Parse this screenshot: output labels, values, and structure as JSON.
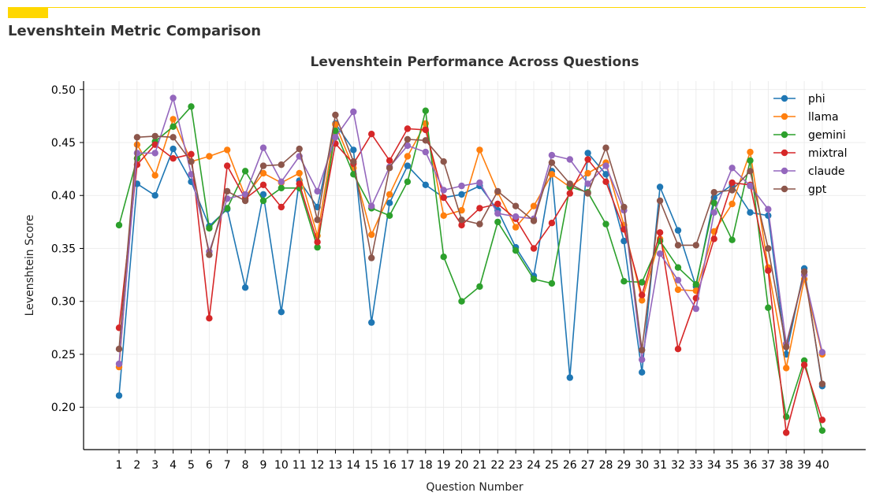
{
  "header": {
    "title": "Levenshtein Metric Comparison",
    "accent_color": "#FFD700"
  },
  "chart_data": {
    "type": "line",
    "title": "Levenshtein Performance Across Questions",
    "xlabel": "Question Number",
    "ylabel": "Levenshtein Score",
    "ylim": [
      0.16,
      0.508
    ],
    "yticks": [
      0.2,
      0.25,
      0.3,
      0.35,
      0.4,
      0.45,
      0.5
    ],
    "grid": true,
    "legend_position": "top-right",
    "x": [
      1,
      2,
      3,
      4,
      5,
      6,
      7,
      8,
      9,
      10,
      11,
      12,
      13,
      14,
      15,
      16,
      17,
      18,
      19,
      20,
      21,
      22,
      23,
      24,
      25,
      26,
      27,
      28,
      29,
      30,
      31,
      32,
      33,
      34,
      35,
      36,
      37,
      38,
      39,
      40
    ],
    "series": [
      {
        "name": "phi",
        "color": "#1f77b4",
        "values": [
          0.211,
          0.411,
          0.4,
          0.444,
          0.413,
          0.371,
          0.387,
          0.313,
          0.401,
          0.29,
          0.414,
          0.389,
          0.468,
          0.443,
          0.28,
          0.393,
          0.428,
          0.41,
          0.398,
          0.401,
          0.409,
          0.386,
          0.351,
          0.324,
          0.423,
          0.228,
          0.44,
          0.42,
          0.357,
          0.233,
          0.408,
          0.367,
          0.314,
          0.398,
          0.41,
          0.384,
          0.381,
          0.25,
          0.331,
          0.22
        ]
      },
      {
        "name": "llama",
        "color": "#ff7f0e",
        "values": [
          0.238,
          0.448,
          0.419,
          0.472,
          0.432,
          0.437,
          0.443,
          0.399,
          0.421,
          0.412,
          0.421,
          0.362,
          0.467,
          0.426,
          0.363,
          0.401,
          0.437,
          0.468,
          0.381,
          0.386,
          0.443,
          0.403,
          0.37,
          0.39,
          0.42,
          0.408,
          0.421,
          0.431,
          0.372,
          0.301,
          0.359,
          0.311,
          0.31,
          0.366,
          0.392,
          0.441,
          0.332,
          0.237,
          0.321,
          0.25
        ]
      },
      {
        "name": "gemini",
        "color": "#2ca02c",
        "values": [
          0.372,
          0.435,
          0.451,
          0.465,
          0.484,
          0.369,
          0.388,
          0.423,
          0.395,
          0.407,
          0.407,
          0.351,
          0.461,
          0.42,
          0.388,
          0.381,
          0.413,
          0.48,
          0.342,
          0.3,
          0.314,
          0.375,
          0.348,
          0.321,
          0.317,
          0.408,
          0.403,
          0.373,
          0.319,
          0.318,
          0.357,
          0.332,
          0.316,
          0.393,
          0.358,
          0.433,
          0.294,
          0.191,
          0.244,
          0.178
        ]
      },
      {
        "name": "mixtral",
        "color": "#d62728",
        "values": [
          0.275,
          0.429,
          0.448,
          0.435,
          0.439,
          0.284,
          0.428,
          0.397,
          0.41,
          0.389,
          0.411,
          0.356,
          0.449,
          0.43,
          0.458,
          0.433,
          0.463,
          0.462,
          0.398,
          0.372,
          0.388,
          0.392,
          0.378,
          0.35,
          0.374,
          0.402,
          0.434,
          0.413,
          0.368,
          0.306,
          0.365,
          0.255,
          0.303,
          0.359,
          0.412,
          0.41,
          0.329,
          0.176,
          0.24,
          0.188
        ]
      },
      {
        "name": "claude",
        "color": "#9467bd",
        "values": [
          0.241,
          0.44,
          0.44,
          0.492,
          0.42,
          0.347,
          0.397,
          0.401,
          0.445,
          0.413,
          0.437,
          0.404,
          0.455,
          0.479,
          0.39,
          0.427,
          0.447,
          0.441,
          0.405,
          0.409,
          0.412,
          0.383,
          0.38,
          0.378,
          0.438,
          0.434,
          0.411,
          0.428,
          0.386,
          0.245,
          0.345,
          0.32,
          0.293,
          0.384,
          0.426,
          0.409,
          0.387,
          0.26,
          0.325,
          0.252
        ]
      },
      {
        "name": "gpt",
        "color": "#8c564b",
        "values": [
          0.255,
          0.455,
          0.456,
          0.455,
          0.432,
          0.344,
          0.404,
          0.395,
          0.428,
          0.429,
          0.444,
          0.377,
          0.476,
          0.432,
          0.341,
          0.426,
          0.453,
          0.452,
          0.432,
          0.377,
          0.373,
          0.404,
          0.39,
          0.376,
          0.431,
          0.411,
          0.402,
          0.445,
          0.389,
          0.254,
          0.395,
          0.353,
          0.353,
          0.403,
          0.405,
          0.423,
          0.35,
          0.257,
          0.328,
          0.222
        ]
      }
    ]
  }
}
